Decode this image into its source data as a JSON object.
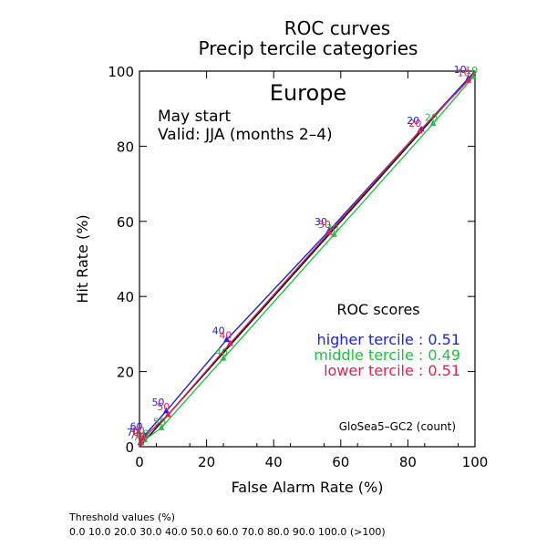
{
  "chart_data": {
    "type": "line",
    "title": [
      "ROC curves",
      "Precip tercile categories"
    ],
    "region": "Europe",
    "subtitle": [
      "May start",
      "Valid: JJA (months 2–4)"
    ],
    "xlabel": "False Alarm Rate (%)",
    "ylabel": "Hit Rate (%)",
    "xlim": [
      0,
      100
    ],
    "ylim": [
      0,
      100
    ],
    "xticks": [
      0,
      20,
      40,
      60,
      80,
      100
    ],
    "yticks": [
      0,
      20,
      40,
      60,
      80,
      100
    ],
    "grid": false,
    "diagonal": true,
    "legend_title": "ROC scores",
    "model_label": "GloSea5–GC2 (count)",
    "series": [
      {
        "name": "higher tercile",
        "score": "0.51",
        "color": "#2020e0",
        "points": [
          [
            0,
            0
          ],
          [
            0.5,
            1.5
          ],
          [
            1.5,
            3
          ],
          [
            8,
            9.5
          ],
          [
            26,
            28.5
          ],
          [
            56.5,
            57.5
          ],
          [
            84,
            84.5
          ],
          [
            98,
            98
          ],
          [
            100,
            100
          ]
        ],
        "labels": [
          "",
          "70",
          "60",
          "50",
          "40",
          "30",
          "20",
          "10",
          ""
        ]
      },
      {
        "name": "middle tercile",
        "score": "0.49",
        "color": "#20c040",
        "points": [
          [
            0,
            0
          ],
          [
            0.5,
            1
          ],
          [
            1.5,
            1.8
          ],
          [
            6.5,
            5
          ],
          [
            25,
            23.5
          ],
          [
            58,
            56.5
          ],
          [
            87.5,
            86
          ],
          [
            99.5,
            98.5
          ],
          [
            100,
            100
          ]
        ],
        "labels": [
          "",
          "70",
          "60",
          "50",
          "40",
          "30",
          "20",
          "10",
          ""
        ]
      },
      {
        "name": "lower tercile",
        "score": "0.51",
        "color": "#e02050",
        "points": [
          [
            0,
            0
          ],
          [
            0.3,
            1
          ],
          [
            1,
            2.2
          ],
          [
            8.5,
            8.5
          ],
          [
            27,
            27.5
          ],
          [
            56.5,
            57
          ],
          [
            83.5,
            84
          ],
          [
            98,
            97.5
          ],
          [
            100,
            100
          ]
        ],
        "labels": [
          "",
          "70",
          "60",
          "50",
          "40",
          "30",
          "20",
          "10",
          ""
        ]
      }
    ]
  },
  "footer": {
    "title": "Threshold values (%)",
    "values": "0.0 10.0 20.0 30.0 40.0 50.0 60.0 70.0 80.0 90.0 100.0 (>100)"
  }
}
